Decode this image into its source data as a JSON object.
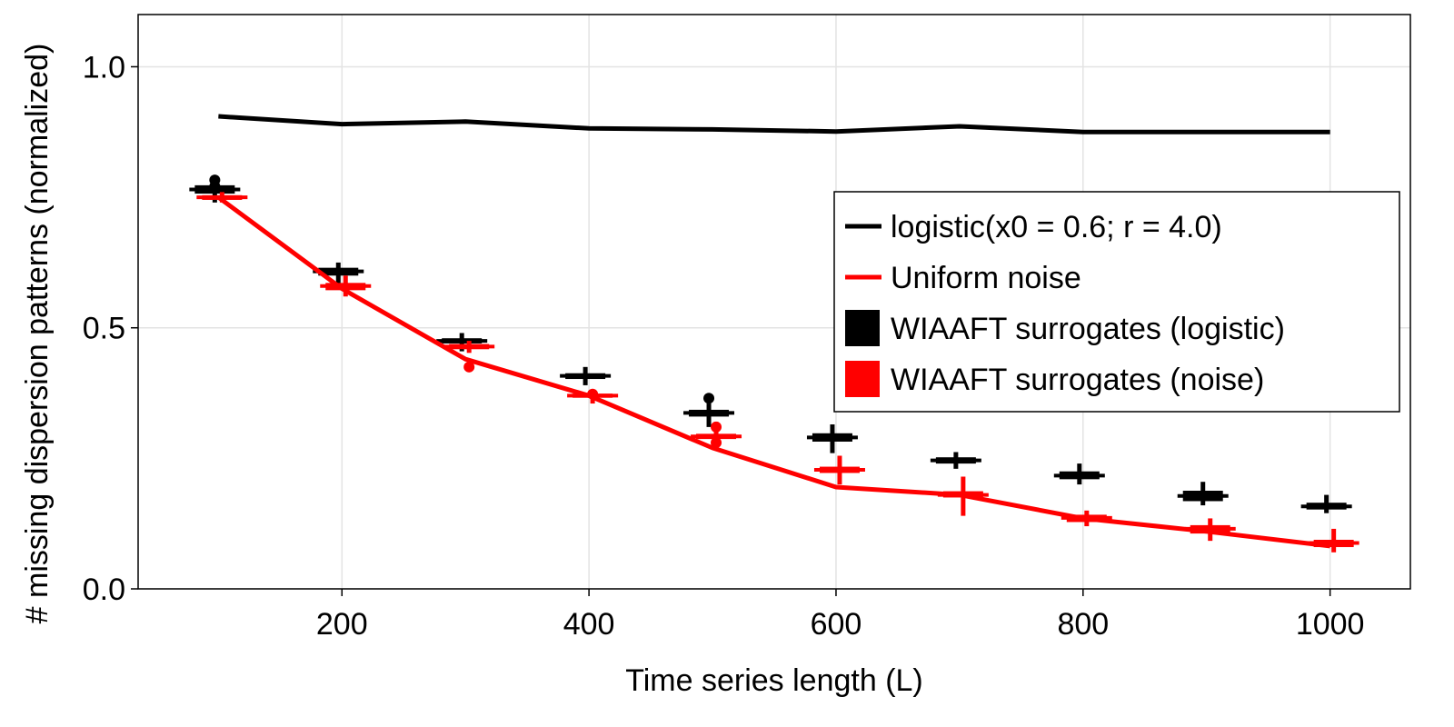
{
  "chart_data": {
    "type": "line",
    "title": "",
    "xlabel": "Time series length (L)",
    "ylabel": "# missing dispersion patterns (normalized)",
    "xlim": [
      35,
      1065
    ],
    "ylim": [
      0,
      1.1
    ],
    "x_ticks": [
      200,
      400,
      600,
      800,
      1000
    ],
    "x_tick_labels": [
      "200",
      "400",
      "600",
      "800",
      "1000"
    ],
    "y_ticks": [
      0,
      0.5,
      1.0
    ],
    "y_tick_labels": [
      "0.0",
      "0.5",
      "1.0"
    ],
    "grid": true,
    "legend_position": "right",
    "x": [
      100,
      200,
      300,
      400,
      500,
      600,
      700,
      800,
      900,
      1000
    ],
    "series": [
      {
        "name": "logistic(x0 = 0.6; r = 4.0)",
        "kind": "line",
        "color": "#000000",
        "values": [
          0.905,
          0.89,
          0.895,
          0.882,
          0.88,
          0.876,
          0.886,
          0.875,
          0.875,
          0.875
        ]
      },
      {
        "name": "Uniform noise",
        "kind": "line",
        "color": "#ff0000",
        "values": [
          0.75,
          0.575,
          0.44,
          0.37,
          0.27,
          0.195,
          0.18,
          0.135,
          0.11,
          0.082
        ]
      }
    ],
    "boxplots": [
      {
        "name": "WIAAFT surrogates (logistic)",
        "color": "#000000",
        "dodge": -1,
        "boxes": [
          {
            "x": 100,
            "low": 0.74,
            "q1": 0.757,
            "median": 0.765,
            "q3": 0.773,
            "high": 0.78,
            "outliers": [
              0.783,
              0.771
            ]
          },
          {
            "x": 200,
            "low": 0.585,
            "q1": 0.6,
            "median": 0.608,
            "q3": 0.615,
            "high": 0.625,
            "outliers": []
          },
          {
            "x": 300,
            "low": 0.455,
            "q1": 0.47,
            "median": 0.475,
            "q3": 0.48,
            "high": 0.49,
            "outliers": []
          },
          {
            "x": 400,
            "low": 0.39,
            "q1": 0.402,
            "median": 0.408,
            "q3": 0.413,
            "high": 0.425,
            "outliers": []
          },
          {
            "x": 500,
            "low": 0.31,
            "q1": 0.33,
            "median": 0.337,
            "q3": 0.343,
            "high": 0.355,
            "outliers": [
              0.365
            ]
          },
          {
            "x": 600,
            "low": 0.26,
            "q1": 0.282,
            "median": 0.29,
            "q3": 0.298,
            "high": 0.315,
            "outliers": []
          },
          {
            "x": 700,
            "low": 0.23,
            "q1": 0.24,
            "median": 0.246,
            "q3": 0.252,
            "high": 0.262,
            "outliers": []
          },
          {
            "x": 800,
            "low": 0.2,
            "q1": 0.21,
            "median": 0.217,
            "q3": 0.225,
            "high": 0.24,
            "outliers": []
          },
          {
            "x": 900,
            "low": 0.16,
            "q1": 0.168,
            "median": 0.178,
            "q3": 0.188,
            "high": 0.205,
            "outliers": []
          },
          {
            "x": 1000,
            "low": 0.145,
            "q1": 0.152,
            "median": 0.158,
            "q3": 0.165,
            "high": 0.18,
            "outliers": []
          }
        ]
      },
      {
        "name": "WIAAFT surrogates (noise)",
        "color": "#ff0000",
        "dodge": 1,
        "boxes": [
          {
            "x": 100,
            "low": 0.74,
            "q1": 0.745,
            "median": 0.75,
            "q3": 0.754,
            "high": 0.76,
            "outliers": []
          },
          {
            "x": 200,
            "low": 0.56,
            "q1": 0.572,
            "median": 0.58,
            "q3": 0.586,
            "high": 0.6,
            "outliers": []
          },
          {
            "x": 300,
            "low": 0.452,
            "q1": 0.459,
            "median": 0.464,
            "q3": 0.469,
            "high": 0.475,
            "outliers": [
              0.425
            ]
          },
          {
            "x": 400,
            "low": 0.355,
            "q1": 0.366,
            "median": 0.37,
            "q3": 0.374,
            "high": 0.38,
            "outliers": [
              0.373
            ]
          },
          {
            "x": 500,
            "low": 0.28,
            "q1": 0.287,
            "median": 0.292,
            "q3": 0.297,
            "high": 0.32,
            "outliers": [
              0.31,
              0.28
            ]
          },
          {
            "x": 600,
            "low": 0.2,
            "q1": 0.222,
            "median": 0.228,
            "q3": 0.234,
            "high": 0.255,
            "outliers": []
          },
          {
            "x": 700,
            "low": 0.14,
            "q1": 0.175,
            "median": 0.18,
            "q3": 0.187,
            "high": 0.215,
            "outliers": []
          },
          {
            "x": 800,
            "low": 0.12,
            "q1": 0.128,
            "median": 0.136,
            "q3": 0.142,
            "high": 0.15,
            "outliers": []
          },
          {
            "x": 900,
            "low": 0.092,
            "q1": 0.106,
            "median": 0.115,
            "q3": 0.122,
            "high": 0.135,
            "outliers": []
          },
          {
            "x": 1000,
            "low": 0.07,
            "q1": 0.08,
            "median": 0.088,
            "q3": 0.094,
            "high": 0.115,
            "outliers": []
          }
        ]
      }
    ],
    "legend": [
      {
        "label": "logistic(x0 = 0.6; r = 4.0)",
        "swatch": "line",
        "color": "#000000"
      },
      {
        "label": "Uniform noise",
        "swatch": "line",
        "color": "#ff0000"
      },
      {
        "label": "WIAAFT surrogates (logistic)",
        "swatch": "box",
        "color": "#000000"
      },
      {
        "label": "WIAAFT surrogates (noise)",
        "swatch": "box",
        "color": "#ff0000"
      }
    ]
  }
}
